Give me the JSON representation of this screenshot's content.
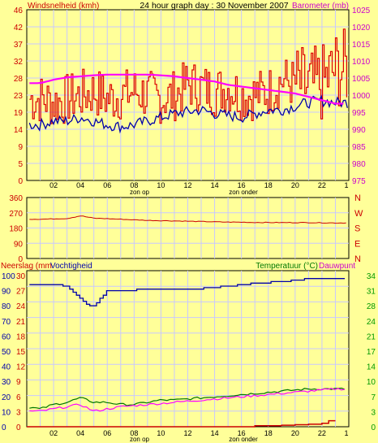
{
  "header": {
    "wind_title": "Windsnelheid (kmh)",
    "main_title": "24 hour graph day : 30 November 2007",
    "baro_title": "Barometer (mb)"
  },
  "colors": {
    "background": "#ffff99",
    "plot": "#ffff99",
    "grid": "#c8c8ff",
    "wind": "#dd0000",
    "wind_axis": "#cc0000",
    "temperature": "#0000aa",
    "barometer": "#ff00ff",
    "barometer_axis": "#cc00cc",
    "direction": "#cc0000",
    "rain": "#cc0000",
    "humidity": "#0000aa",
    "temp_bottom": "#007700",
    "dewpoint": "#ff00ff",
    "right_axis_green": "#009900"
  },
  "x_axis": {
    "ticks": [
      "02",
      "04",
      "06",
      "08",
      "10",
      "12",
      "14",
      "16",
      "18",
      "20",
      "22",
      "1"
    ],
    "sunrise_label": "zon op",
    "sunset_label": "zon onder"
  },
  "chart_data": [
    {
      "type": "line",
      "title": "Windsnelheid (kmh) / Barometer (mb)",
      "y_left_ticks": [
        "46",
        "42",
        "37",
        "32",
        "28",
        "23",
        "19",
        "14",
        "9",
        "5",
        "0"
      ],
      "y_right_ticks": [
        "1025",
        "1020",
        "1015",
        "1010",
        "1005",
        "1000",
        "995",
        "990",
        "985",
        "980",
        "975"
      ],
      "ylim_left": [
        0,
        46
      ],
      "ylim_right": [
        975,
        1025
      ],
      "series": [
        {
          "name": "Windsnelheid",
          "axis": "left",
          "points": [
            [
              1,
              22
            ],
            [
              2,
              21
            ],
            [
              3,
              22
            ],
            [
              4,
              23
            ],
            [
              5,
              24
            ],
            [
              6,
              22
            ],
            [
              7,
              23
            ],
            [
              8,
              24
            ],
            [
              9,
              23
            ],
            [
              10,
              22
            ],
            [
              11,
              23
            ],
            [
              12,
              26
            ],
            [
              13,
              25
            ],
            [
              14,
              24
            ],
            [
              15,
              25
            ],
            [
              16,
              23
            ],
            [
              17,
              23
            ],
            [
              18,
              24
            ],
            [
              19,
              27
            ],
            [
              20,
              26
            ],
            [
              21,
              25
            ],
            [
              22,
              26
            ],
            [
              23,
              30
            ]
          ]
        },
        {
          "name": "temperature_trace",
          "axis": "left",
          "points": [
            [
              1,
              15
            ],
            [
              2,
              16
            ],
            [
              3,
              16
            ],
            [
              4,
              17
            ],
            [
              5,
              16
            ],
            [
              6,
              15
            ],
            [
              7,
              14.5
            ],
            [
              8,
              15
            ],
            [
              9,
              16
            ],
            [
              10,
              17
            ],
            [
              11,
              18
            ],
            [
              12,
              18.5
            ],
            [
              13,
              19
            ],
            [
              14,
              18
            ],
            [
              15,
              17.5
            ],
            [
              16,
              17
            ],
            [
              17,
              18
            ],
            [
              18,
              19
            ],
            [
              19,
              19
            ],
            [
              20,
              20
            ],
            [
              21,
              21
            ],
            [
              22,
              21.5
            ],
            [
              23,
              21
            ]
          ]
        },
        {
          "name": "Barometer",
          "axis": "right",
          "points": [
            [
              1,
              1003.5
            ],
            [
              2,
              1004.5
            ],
            [
              3,
              1005.2
            ],
            [
              4,
              1005.5
            ],
            [
              5,
              1005.8
            ],
            [
              6,
              1006
            ],
            [
              7,
              1006
            ],
            [
              8,
              1006
            ],
            [
              9,
              1006
            ],
            [
              10,
              1005.8
            ],
            [
              11,
              1005.5
            ],
            [
              12,
              1005
            ],
            [
              13,
              1004.5
            ],
            [
              14,
              1004
            ],
            [
              15,
              1003
            ],
            [
              16,
              1002.5
            ],
            [
              17,
              1002
            ],
            [
              18,
              1001.5
            ],
            [
              19,
              1001
            ],
            [
              20,
              1000.5
            ],
            [
              21,
              999.5
            ],
            [
              22,
              998.5
            ],
            [
              23,
              997.5
            ]
          ]
        }
      ],
      "annotations": [
        "zon op",
        "zon onder"
      ]
    },
    {
      "type": "line",
      "title": "Windrichting",
      "y_left_ticks": [
        "360",
        "270",
        "180",
        "90",
        "0"
      ],
      "y_right_ticks": [
        "N",
        "W",
        "S",
        "E",
        "N"
      ],
      "ylim": [
        0,
        360
      ],
      "series": [
        {
          "name": "direction",
          "points": [
            [
              1,
              232
            ],
            [
              3,
              236
            ],
            [
              4,
              252
            ],
            [
              5,
              238
            ],
            [
              7,
              232
            ],
            [
              9,
              225
            ],
            [
              11,
              222
            ],
            [
              13,
              218
            ],
            [
              15,
              215
            ],
            [
              17,
              213
            ],
            [
              19,
              212
            ],
            [
              21,
              212
            ],
            [
              23,
              210
            ]
          ]
        }
      ]
    },
    {
      "type": "line",
      "title": "Neerslag (mm) / Vochtigheid / Temperatuur (°C) / Dauwpunt",
      "labels": {
        "rain": "Neerslag (mm",
        "humidity": "Vochtigheid",
        "temperature": "Temperatuur (°C)",
        "dewpoint": "Dauwpunt"
      },
      "y_left1_ticks": [
        "100",
        "90",
        "80",
        "70",
        "60",
        "50",
        "40",
        "30",
        "20",
        "10",
        "0"
      ],
      "y_left2_ticks": [
        "30",
        "27",
        "24",
        "21",
        "18",
        "15",
        "12",
        "9",
        "6",
        "3",
        "0"
      ],
      "y_right_ticks": [
        "34",
        "31",
        "28",
        "24",
        "21",
        "17",
        "14",
        "10",
        "7",
        "3",
        "0"
      ],
      "series": [
        {
          "name": "Vochtigheid",
          "points": [
            [
              0,
              94
            ],
            [
              2,
              94
            ],
            [
              3,
              93
            ],
            [
              4,
              85
            ],
            [
              4.5,
              80
            ],
            [
              5,
              80
            ],
            [
              6,
              90
            ],
            [
              7,
              90
            ],
            [
              9,
              91
            ],
            [
              11,
              91
            ],
            [
              13,
              91.5
            ],
            [
              15,
              93
            ],
            [
              17,
              95
            ],
            [
              19,
              96
            ],
            [
              21,
              98
            ],
            [
              23,
              98
            ]
          ]
        },
        {
          "name": "Temperatuur",
          "points": [
            [
              0,
              4.5
            ],
            [
              1,
              4
            ],
            [
              2,
              5
            ],
            [
              3,
              5.5
            ],
            [
              4,
              6.5
            ],
            [
              5,
              5.5
            ],
            [
              6,
              5.5
            ],
            [
              7,
              5
            ],
            [
              8,
              5
            ],
            [
              9,
              5.5
            ],
            [
              10,
              6
            ],
            [
              11,
              6
            ],
            [
              13,
              6.5
            ],
            [
              15,
              7
            ],
            [
              17,
              7.5
            ],
            [
              19,
              8
            ],
            [
              21,
              8.5
            ],
            [
              23,
              8.5
            ]
          ]
        },
        {
          "name": "Dauwpunt",
          "points": [
            [
              0,
              3.5
            ],
            [
              1,
              3.5
            ],
            [
              2,
              4
            ],
            [
              3,
              4.5
            ],
            [
              4,
              5
            ],
            [
              5,
              3.5
            ],
            [
              6,
              4
            ],
            [
              7,
              4.5
            ],
            [
              9,
              5
            ],
            [
              11,
              5.5
            ],
            [
              13,
              6
            ],
            [
              15,
              6.5
            ],
            [
              17,
              7
            ],
            [
              19,
              7.5
            ],
            [
              21,
              8
            ],
            [
              23,
              8.5
            ]
          ]
        },
        {
          "name": "Neerslag",
          "points": [
            [
              0,
              0
            ],
            [
              16,
              0
            ],
            [
              17,
              0.2
            ],
            [
              19,
              0.3
            ],
            [
              20,
              0.4
            ],
            [
              21,
              0.5
            ],
            [
              22,
              0.7
            ],
            [
              22.5,
              1.2
            ],
            [
              23,
              1.2
            ]
          ]
        }
      ]
    }
  ]
}
